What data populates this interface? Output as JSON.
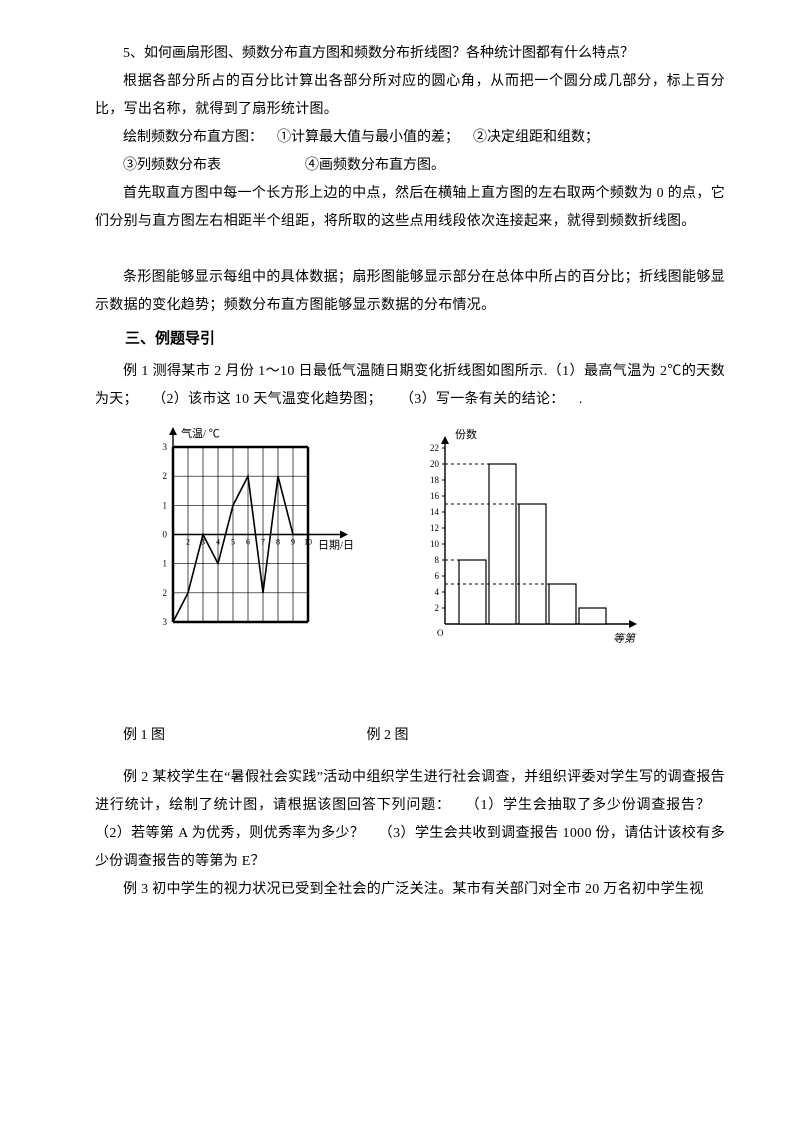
{
  "para1": "5、如何画扇形图、频数分布直方图和频数分布折线图？各种统计图都有什么特点？",
  "para2": "根据各部分所占的百分比计算出各部分所对应的圆心角，从而把一个圆分成几部分，标上百分比，写出名称，就得到了扇形统计图。",
  "para3": "绘制频数分布直方图： ①计算最大值与最小值的差； ②决定组距和组数；",
  "para4": "③列频数分布表      ④画频数分布直方图。",
  "para5": "首先取直方图中每一个长方形上边的中点，然后在横轴上直方图的左右取两个频数为 0 的点，它们分别与直方图左右相距半个组距，将所取的这些点用线段依次连接起来，就得到频数折线图。",
  "para6": "条形图能够显示每组中的具体数据；扇形图能够显示部分在总体中所占的百分比；折线图能够显示数据的变化趋势；频数分布直方图能够显示数据的分布情况。",
  "section": "三、例题导引",
  "ex1": "例 1 测得某市 2 月份 1～10 日最低气温随日期变化折线图如图所示.（1）最高气温为 2℃的天数为天； （2）该市这 10 天气温变化趋势图；  （3）写一条有关的结论： .",
  "caption1": "例 1 图",
  "caption2": "例 2 图",
  "ex2": "例 2 某校学生在“暑假社会实践”活动中组织学生进行社会调查，并组织评委对学生写的调查报告进行统计，绘制了统计图，请根据该图回答下列问题： （1）学生会抽取了多少份调查报告？ （2）若等第 A 为优秀，则优秀率为多少？ （3）学生会共收到调查报告 1000 份，请估计该校有多少份调查报告的等第为 E？",
  "ex3": "例 3 初中学生的视力状况已受到全社会的广泛关注。某市有关部门对全市 20 万名初中学生视",
  "chartA": {
    "type": "line",
    "x_axis_label": "日期/日",
    "y_axis_label": "气温/ ℃",
    "y_ticks": [
      "3",
      "2",
      "1",
      "0",
      "1",
      "2",
      "3"
    ],
    "y_tick_values_top_to_bottom": [
      3,
      2,
      1,
      0,
      -1,
      -2,
      -3
    ],
    "x_ticks": [
      "1",
      "2",
      "3",
      "4",
      "5",
      "6",
      "7",
      "8",
      "9",
      "10"
    ],
    "data_values": [
      -3,
      -2,
      0,
      -1,
      1,
      2,
      -2,
      2,
      0,
      0
    ],
    "axis_color": "#000000",
    "grid_color": "#000000",
    "line_color": "#000000",
    "grid_x_min": 1,
    "grid_x_max": 10,
    "grid_y_min": -3,
    "grid_y_max": 3,
    "tick_fontsize": 9,
    "label_fontsize": 11,
    "line_width": 1.6,
    "grid_width": 0.7,
    "bold_border_width": 2.5
  },
  "chartB": {
    "type": "bar",
    "x_axis_label": "等第",
    "y_axis_label": "份数",
    "y_ticks": [
      2,
      4,
      6,
      8,
      10,
      12,
      14,
      16,
      18,
      20,
      22
    ],
    "y_max": 22,
    "bars": [
      {
        "height": 8
      },
      {
        "height": 20
      },
      {
        "height": 15
      },
      {
        "height": 5
      },
      {
        "height": 2
      }
    ],
    "dashed_levels": [
      8,
      20,
      15,
      5
    ],
    "axis_color": "#000000",
    "bar_fill": "#ffffff",
    "bar_stroke": "#000000",
    "tick_fontsize": 9,
    "label_fontsize": 11,
    "axis_width": 1.4,
    "bar_stroke_width": 1.2,
    "dash_pattern": "3,3",
    "origin_label": "O",
    "bar_width_ratio": 0.9
  }
}
